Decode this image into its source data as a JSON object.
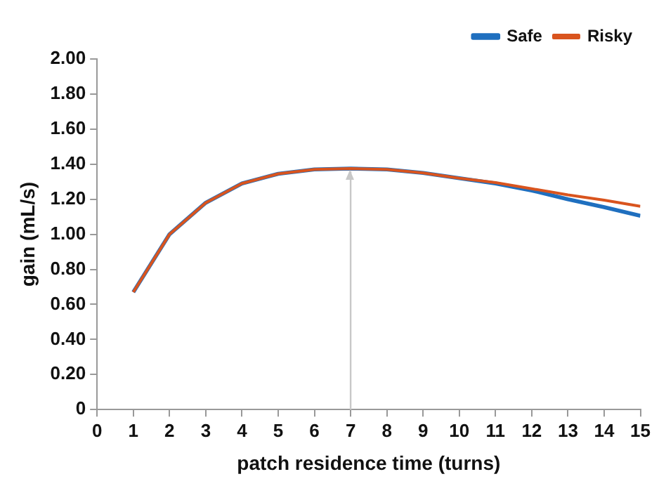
{
  "chart_data": {
    "type": "line",
    "xlabel": "patch residence time (turns)",
    "ylabel": "gain (mL/s)",
    "x": [
      1,
      2,
      3,
      4,
      5,
      6,
      7,
      8,
      9,
      10,
      11,
      12,
      13,
      14,
      15
    ],
    "series": [
      {
        "name": "Safe",
        "color": "#1f6fbf",
        "values": [
          0.67,
          1.0,
          1.18,
          1.29,
          1.345,
          1.37,
          1.375,
          1.37,
          1.35,
          1.32,
          1.29,
          1.25,
          1.2,
          1.155,
          1.105
        ]
      },
      {
        "name": "Risky",
        "color": "#d9541e",
        "values": [
          0.67,
          1.0,
          1.18,
          1.29,
          1.345,
          1.37,
          1.375,
          1.37,
          1.35,
          1.32,
          1.295,
          1.26,
          1.225,
          1.195,
          1.16
        ]
      }
    ],
    "xlim": [
      0,
      15
    ],
    "xticks": [
      0,
      1,
      2,
      3,
      4,
      5,
      6,
      7,
      8,
      9,
      10,
      11,
      12,
      13,
      14,
      15
    ],
    "ylim": [
      0,
      2
    ],
    "yticks": [
      0,
      {
        "value": 0.2,
        "label": "0.20"
      },
      {
        "value": 0.4,
        "label": "0.40"
      },
      {
        "value": 0.6,
        "label": "0.60"
      },
      {
        "value": 0.8,
        "label": "0.80"
      },
      {
        "value": 1,
        "label": "1.00"
      },
      {
        "value": 1.2,
        "label": "1.20"
      },
      {
        "value": 1.4,
        "label": "1.40"
      },
      {
        "value": 1.6,
        "label": "1.60"
      },
      {
        "value": 1.8,
        "label": "1.80"
      },
      {
        "value": 2,
        "label": "2.00"
      }
    ],
    "ref_lines": [
      {
        "axis": "x",
        "value": 7,
        "color": "#c8c8c8"
      }
    ],
    "grid": false,
    "legend": "top right",
    "marker": "none",
    "line_style": "solid"
  }
}
